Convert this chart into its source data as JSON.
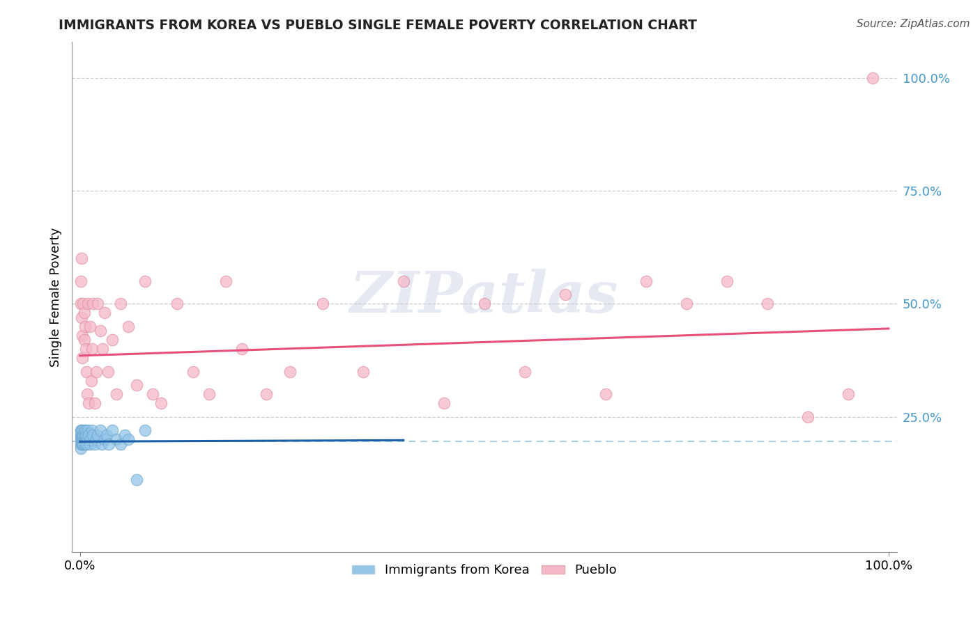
{
  "title": "IMMIGRANTS FROM KOREA VS PUEBLO SINGLE FEMALE POVERTY CORRELATION CHART",
  "source": "Source: ZipAtlas.com",
  "ylabel": "Single Female Poverty",
  "watermark_text": "ZIPatlas",
  "blue_scatter_color": "#92c5e8",
  "pink_scatter_color": "#f5b8c8",
  "blue_line_color": "#1a5fa8",
  "pink_line_color": "#e8507a",
  "grid_color": "#cccccc",
  "tick_color": "#4499cc",
  "title_color": "#222222",
  "korea_x": [
    0.001,
    0.001,
    0.001,
    0.001,
    0.001,
    0.002,
    0.002,
    0.002,
    0.002,
    0.003,
    0.003,
    0.003,
    0.003,
    0.004,
    0.004,
    0.004,
    0.005,
    0.005,
    0.005,
    0.005,
    0.006,
    0.006,
    0.007,
    0.007,
    0.008,
    0.008,
    0.009,
    0.01,
    0.01,
    0.011,
    0.012,
    0.013,
    0.015,
    0.016,
    0.018,
    0.02,
    0.022,
    0.025,
    0.027,
    0.03,
    0.033,
    0.036,
    0.04,
    0.045,
    0.05,
    0.055,
    0.06,
    0.07,
    0.08
  ],
  "korea_y": [
    0.2,
    0.21,
    0.19,
    0.22,
    0.18,
    0.2,
    0.21,
    0.19,
    0.22,
    0.2,
    0.21,
    0.19,
    0.22,
    0.2,
    0.21,
    0.19,
    0.2,
    0.21,
    0.22,
    0.19,
    0.2,
    0.21,
    0.22,
    0.19,
    0.2,
    0.21,
    0.19,
    0.22,
    0.2,
    0.21,
    0.19,
    0.2,
    0.22,
    0.21,
    0.19,
    0.2,
    0.21,
    0.22,
    0.19,
    0.2,
    0.21,
    0.19,
    0.22,
    0.2,
    0.19,
    0.21,
    0.2,
    0.11,
    0.22
  ],
  "pueblo_x": [
    0.001,
    0.001,
    0.002,
    0.002,
    0.003,
    0.003,
    0.004,
    0.005,
    0.005,
    0.006,
    0.007,
    0.008,
    0.009,
    0.01,
    0.011,
    0.012,
    0.014,
    0.015,
    0.016,
    0.018,
    0.02,
    0.022,
    0.025,
    0.028,
    0.03,
    0.035,
    0.04,
    0.045,
    0.05,
    0.06,
    0.07,
    0.08,
    0.09,
    0.1,
    0.12,
    0.14,
    0.16,
    0.18,
    0.2,
    0.23,
    0.26,
    0.3,
    0.35,
    0.4,
    0.45,
    0.5,
    0.55,
    0.6,
    0.65,
    0.7,
    0.75,
    0.8,
    0.85,
    0.9,
    0.95,
    0.98
  ],
  "pueblo_y": [
    0.55,
    0.5,
    0.6,
    0.47,
    0.43,
    0.38,
    0.5,
    0.48,
    0.42,
    0.45,
    0.4,
    0.35,
    0.3,
    0.5,
    0.28,
    0.45,
    0.33,
    0.4,
    0.5,
    0.28,
    0.35,
    0.5,
    0.44,
    0.4,
    0.48,
    0.35,
    0.42,
    0.3,
    0.5,
    0.45,
    0.32,
    0.55,
    0.3,
    0.28,
    0.5,
    0.35,
    0.3,
    0.55,
    0.4,
    0.3,
    0.35,
    0.5,
    0.35,
    0.55,
    0.28,
    0.5,
    0.35,
    0.52,
    0.3,
    0.55,
    0.5,
    0.55,
    0.5,
    0.25,
    0.3,
    1.0
  ],
  "korea_line_x": [
    0.0,
    0.4
  ],
  "korea_line_y": [
    0.195,
    0.198
  ],
  "pueblo_line_x": [
    0.0,
    1.0
  ],
  "pueblo_line_y": [
    0.385,
    0.445
  ],
  "dashed_line_y": 0.195,
  "xlim": [
    -0.01,
    1.01
  ],
  "ylim": [
    -0.05,
    1.08
  ]
}
